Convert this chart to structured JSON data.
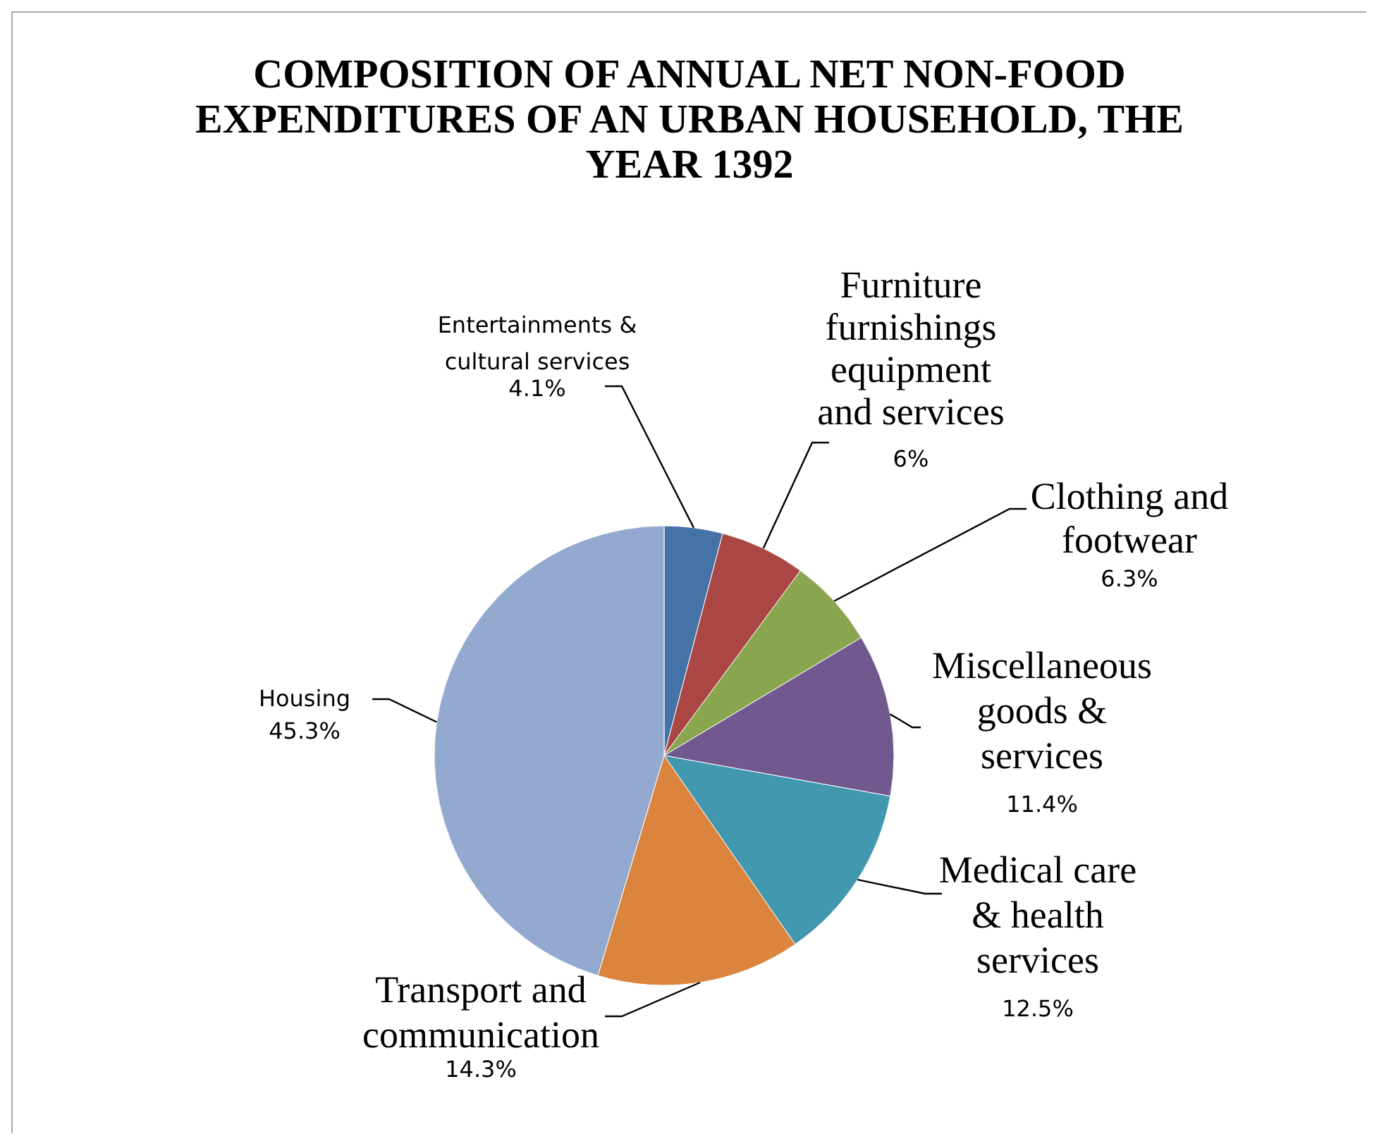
{
  "chart_data": {
    "type": "pie",
    "title": "COMPOSITION OF ANNUAL NET NON-FOOD EXPENDITURES OF AN URBAN HOUSEHOLD, THE YEAR 1392",
    "categories": [
      "Entertainments & cultural services",
      "Furniture furnishings equipment and services",
      "Clothing and footwear",
      "Miscellaneous goods & services",
      "Medical care & health services",
      "Transport and communication",
      "Housing"
    ],
    "values": [
      4.1,
      6,
      6.3,
      11.4,
      12.5,
      14.3,
      45.3
    ],
    "colors": [
      "#4572a7",
      "#aa4643",
      "#89a54e",
      "#71588f",
      "#4198af",
      "#db843d",
      "#93a9cf"
    ],
    "value_labels": [
      "4.1%",
      "6%",
      "6.3%",
      "11.4%",
      "12.5%",
      "14.3%",
      "45.3%"
    ],
    "legend": false
  }
}
